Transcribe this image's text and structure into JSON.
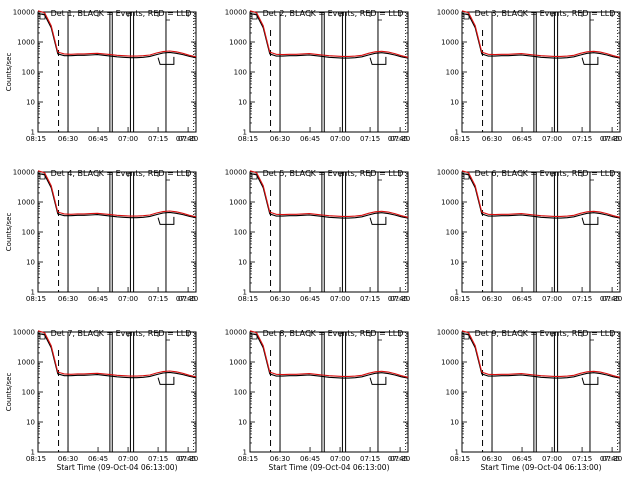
{
  "chart_data": [
    {
      "type": "line",
      "title": "Det 1, BLACK = Events, RED = LLD",
      "xlabel": "",
      "ylabel": "Counts/sec",
      "x_tick_labels": [
        "08:15",
        "06:30",
        "06:45",
        "07:00",
        "07:15",
        "07:30",
        "07:45"
      ],
      "y_tick_labels": [
        "1",
        "10",
        "100",
        "1000",
        "10000"
      ],
      "yscale": "log",
      "ylim": [
        1,
        10000
      ],
      "series": [
        {
          "name": "BLACK = Events",
          "color": "#000000",
          "values": [
            9000,
            8000,
            3000,
            400,
            350,
            350,
            360,
            360,
            370,
            380,
            360,
            340,
            320,
            310,
            300,
            300,
            310,
            330,
            380,
            430,
            450,
            420,
            380,
            330,
            300
          ]
        },
        {
          "name": "RED = LLD",
          "color": "#d81010",
          "values": [
            11000,
            9500,
            3500,
            460,
            400,
            390,
            400,
            400,
            410,
            420,
            400,
            380,
            360,
            350,
            340,
            340,
            350,
            370,
            430,
            480,
            500,
            470,
            420,
            360,
            320
          ]
        }
      ]
    },
    {
      "type": "line",
      "title": "Det 2, BLACK = Events, RED = LLD",
      "xlabel": "",
      "ylabel": "",
      "x_tick_labels": [
        "08:15",
        "06:30",
        "06:45",
        "07:00",
        "07:15",
        "07:30",
        "07:45"
      ],
      "y_tick_labels": [
        "1",
        "10",
        "100",
        "1000",
        "10000"
      ],
      "yscale": "log",
      "ylim": [
        1,
        10000
      ],
      "series": [
        {
          "name": "BLACK = Events",
          "color": "#000000",
          "values": [
            9000,
            8000,
            3000,
            400,
            340,
            340,
            350,
            350,
            360,
            370,
            350,
            330,
            310,
            300,
            290,
            290,
            300,
            320,
            370,
            420,
            440,
            410,
            370,
            320,
            290
          ]
        },
        {
          "name": "RED = LLD",
          "color": "#d81010",
          "values": [
            11000,
            9500,
            3500,
            460,
            390,
            380,
            390,
            390,
            400,
            410,
            390,
            370,
            350,
            340,
            330,
            330,
            340,
            360,
            420,
            470,
            490,
            460,
            410,
            350,
            310
          ]
        }
      ]
    },
    {
      "type": "line",
      "title": "Det 3, BLACK = Events, RED = LLD",
      "xlabel": "",
      "ylabel": "",
      "x_tick_labels": [
        "08:15",
        "06:30",
        "06:45",
        "07:00",
        "07:15",
        "07:30",
        "07:45"
      ],
      "y_tick_labels": [
        "1",
        "10",
        "100",
        "1000",
        "10000"
      ],
      "yscale": "log",
      "ylim": [
        1,
        10000
      ],
      "series": [
        {
          "name": "BLACK = Events",
          "color": "#000000",
          "values": [
            9000,
            8000,
            3000,
            400,
            340,
            340,
            350,
            350,
            360,
            370,
            350,
            330,
            310,
            300,
            290,
            290,
            300,
            320,
            370,
            420,
            440,
            410,
            370,
            320,
            290
          ]
        },
        {
          "name": "RED = LLD",
          "color": "#d81010",
          "values": [
            11000,
            9500,
            3500,
            460,
            390,
            380,
            390,
            390,
            400,
            410,
            390,
            370,
            350,
            340,
            330,
            330,
            340,
            360,
            420,
            470,
            490,
            460,
            410,
            350,
            310
          ]
        }
      ]
    },
    {
      "type": "line",
      "title": "Det 4, BLACK = Events, RED = LLD",
      "xlabel": "",
      "ylabel": "Counts/sec",
      "x_tick_labels": [
        "08:15",
        "06:30",
        "06:45",
        "07:00",
        "07:15",
        "07:30",
        "07:45"
      ],
      "y_tick_labels": [
        "1",
        "10",
        "100",
        "1000",
        "10000"
      ],
      "yscale": "log",
      "ylim": [
        1,
        10000
      ],
      "series": [
        {
          "name": "BLACK = Events",
          "color": "#000000",
          "values": [
            9000,
            8000,
            3000,
            400,
            350,
            350,
            360,
            360,
            370,
            380,
            360,
            340,
            320,
            310,
            300,
            300,
            310,
            330,
            380,
            430,
            450,
            420,
            380,
            330,
            300
          ]
        },
        {
          "name": "RED = LLD",
          "color": "#d81010",
          "values": [
            11000,
            9500,
            3500,
            460,
            400,
            390,
            400,
            400,
            410,
            420,
            400,
            380,
            360,
            350,
            340,
            340,
            350,
            370,
            430,
            480,
            500,
            470,
            420,
            360,
            320
          ]
        }
      ]
    },
    {
      "type": "line",
      "title": "Det 5, BLACK = Events, RED = LLD",
      "xlabel": "",
      "ylabel": "",
      "x_tick_labels": [
        "08:15",
        "06:30",
        "06:45",
        "07:00",
        "07:15",
        "07:30",
        "07:45"
      ],
      "y_tick_labels": [
        "1",
        "10",
        "100",
        "1000",
        "10000"
      ],
      "yscale": "log",
      "ylim": [
        1,
        10000
      ],
      "series": [
        {
          "name": "BLACK = Events",
          "color": "#000000",
          "values": [
            9000,
            8000,
            3000,
            400,
            340,
            340,
            350,
            350,
            360,
            370,
            350,
            330,
            310,
            300,
            290,
            290,
            300,
            320,
            370,
            420,
            440,
            410,
            370,
            320,
            290
          ]
        },
        {
          "name": "RED = LLD",
          "color": "#d81010",
          "values": [
            11000,
            9500,
            3500,
            460,
            390,
            380,
            390,
            390,
            400,
            410,
            390,
            370,
            350,
            340,
            330,
            330,
            340,
            360,
            420,
            470,
            490,
            460,
            410,
            350,
            310
          ]
        }
      ]
    },
    {
      "type": "line",
      "title": "Det 6, BLACK = Events, RED = LLD",
      "xlabel": "",
      "ylabel": "",
      "x_tick_labels": [
        "08:15",
        "06:30",
        "06:45",
        "07:00",
        "07:15",
        "07:30",
        "07:45"
      ],
      "y_tick_labels": [
        "1",
        "10",
        "100",
        "1000",
        "10000"
      ],
      "yscale": "log",
      "ylim": [
        1,
        10000
      ],
      "series": [
        {
          "name": "BLACK = Events",
          "color": "#000000",
          "values": [
            9000,
            8000,
            3000,
            400,
            340,
            340,
            350,
            350,
            360,
            370,
            350,
            330,
            310,
            300,
            290,
            290,
            300,
            320,
            370,
            420,
            440,
            410,
            370,
            320,
            290
          ]
        },
        {
          "name": "RED = LLD",
          "color": "#d81010",
          "values": [
            11000,
            9500,
            3500,
            460,
            390,
            380,
            390,
            390,
            400,
            410,
            390,
            370,
            350,
            340,
            330,
            330,
            340,
            360,
            420,
            470,
            490,
            460,
            410,
            350,
            310
          ]
        }
      ]
    },
    {
      "type": "line",
      "title": "Det 7, BLACK = Events, RED = LLD",
      "xlabel": "Start Time (09-Oct-04 06:13:00)",
      "ylabel": "Counts/sec",
      "x_tick_labels": [
        "08:15",
        "06:30",
        "06:45",
        "07:00",
        "07:15",
        "07:30",
        "07:45"
      ],
      "y_tick_labels": [
        "1",
        "10",
        "100",
        "1000",
        "10000"
      ],
      "yscale": "log",
      "ylim": [
        1,
        10000
      ],
      "series": [
        {
          "name": "BLACK = Events",
          "color": "#000000",
          "values": [
            9000,
            8000,
            3000,
            400,
            350,
            350,
            360,
            360,
            370,
            380,
            360,
            340,
            320,
            310,
            300,
            300,
            310,
            330,
            380,
            430,
            450,
            420,
            380,
            330,
            300
          ]
        },
        {
          "name": "RED = LLD",
          "color": "#d81010",
          "values": [
            11000,
            9500,
            3500,
            460,
            400,
            390,
            400,
            400,
            410,
            420,
            400,
            380,
            360,
            350,
            340,
            340,
            350,
            370,
            430,
            480,
            500,
            470,
            420,
            360,
            320
          ]
        }
      ]
    },
    {
      "type": "line",
      "title": "Det 8, BLACK = Events, RED = LLD",
      "xlabel": "Start Time (09-Oct-04 06:13:00)",
      "ylabel": "",
      "x_tick_labels": [
        "08:15",
        "06:30",
        "06:45",
        "07:00",
        "07:15",
        "07:30",
        "07:45"
      ],
      "y_tick_labels": [
        "1",
        "10",
        "100",
        "1000",
        "10000"
      ],
      "yscale": "log",
      "ylim": [
        1,
        10000
      ],
      "series": [
        {
          "name": "BLACK = Events",
          "color": "#000000",
          "values": [
            9000,
            8000,
            3000,
            400,
            340,
            340,
            350,
            350,
            360,
            370,
            350,
            330,
            310,
            300,
            290,
            290,
            300,
            320,
            370,
            420,
            440,
            410,
            370,
            320,
            290
          ]
        },
        {
          "name": "RED = LLD",
          "color": "#d81010",
          "values": [
            11000,
            9500,
            3500,
            460,
            390,
            380,
            390,
            390,
            400,
            410,
            390,
            370,
            350,
            340,
            330,
            330,
            340,
            360,
            420,
            470,
            490,
            460,
            410,
            350,
            310
          ]
        }
      ]
    },
    {
      "type": "line",
      "title": "Det 9, BLACK = Events, RED = LLD",
      "xlabel": "Start Time (09-Oct-04 06:13:00)",
      "ylabel": "",
      "x_tick_labels": [
        "08:15",
        "06:30",
        "06:45",
        "07:00",
        "07:15",
        "07:30",
        "07:45"
      ],
      "y_tick_labels": [
        "1",
        "10",
        "100",
        "1000",
        "10000"
      ],
      "yscale": "log",
      "ylim": [
        1,
        10000
      ],
      "series": [
        {
          "name": "BLACK = Events",
          "color": "#000000",
          "values": [
            9000,
            8000,
            3000,
            400,
            340,
            340,
            350,
            350,
            360,
            370,
            350,
            330,
            310,
            300,
            290,
            290,
            300,
            320,
            370,
            420,
            440,
            410,
            370,
            320,
            290
          ]
        },
        {
          "name": "RED = LLD",
          "color": "#d81010",
          "values": [
            11000,
            9500,
            3500,
            460,
            390,
            380,
            390,
            390,
            400,
            410,
            390,
            370,
            350,
            340,
            330,
            330,
            340,
            360,
            420,
            470,
            490,
            460,
            410,
            350,
            310
          ]
        }
      ]
    }
  ]
}
